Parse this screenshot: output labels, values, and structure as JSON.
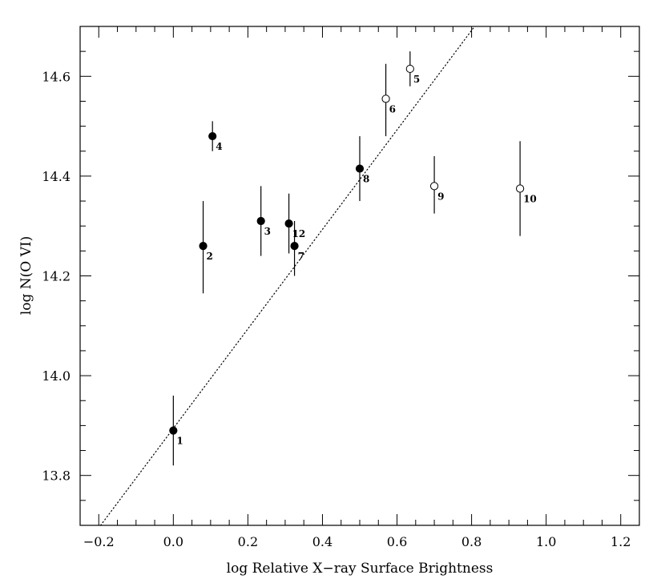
{
  "chart_data": {
    "type": "scatter",
    "title": "",
    "xlabel": "log Relative X−ray Surface Brightness",
    "ylabel": "log N(O VI)",
    "xlim": [
      -0.25,
      1.25
    ],
    "ylim": [
      13.7,
      14.7
    ],
    "x_ticks": [
      -0.2,
      0.0,
      0.2,
      0.4,
      0.6,
      0.8,
      1.0,
      1.2
    ],
    "x_tick_labels": [
      "−0.2",
      "0.0",
      "0.2",
      "0.4",
      "0.6",
      "0.8",
      "1.0",
      "1.2"
    ],
    "y_ticks": [
      13.8,
      14.0,
      14.2,
      14.4,
      14.6
    ],
    "y_tick_labels": [
      "13.8",
      "14.0",
      "14.2",
      "14.4",
      "14.6"
    ],
    "grid": false,
    "legend": "none",
    "series": [
      {
        "marker": "filled-circle",
        "points": [
          {
            "label": "1",
            "x": 0.0,
            "y": 13.89,
            "err_low": 13.82,
            "err_high": 13.96
          },
          {
            "label": "2",
            "x": 0.08,
            "y": 14.26,
            "err_low": 14.165,
            "err_high": 14.35
          },
          {
            "label": "3",
            "x": 0.235,
            "y": 14.31,
            "err_low": 14.24,
            "err_high": 14.38
          },
          {
            "label": "4",
            "x": 0.105,
            "y": 14.48,
            "err_low": 14.45,
            "err_high": 14.51
          },
          {
            "label": "12",
            "x": 0.31,
            "y": 14.305,
            "err_low": 14.245,
            "err_high": 14.365
          },
          {
            "label": "7",
            "x": 0.325,
            "y": 14.26,
            "err_low": 14.2,
            "err_high": 14.31
          },
          {
            "label": "8",
            "x": 0.5,
            "y": 14.415,
            "err_low": 14.35,
            "err_high": 14.48
          }
        ]
      },
      {
        "marker": "open-circle",
        "points": [
          {
            "label": "5",
            "x": 0.635,
            "y": 14.615,
            "err_low": 14.58,
            "err_high": 14.65
          },
          {
            "label": "6",
            "x": 0.57,
            "y": 14.555,
            "err_low": 14.48,
            "err_high": 14.625
          },
          {
            "label": "9",
            "x": 0.7,
            "y": 14.38,
            "err_low": 14.325,
            "err_high": 14.44
          },
          {
            "label": "10",
            "x": 0.93,
            "y": 14.375,
            "err_low": 14.28,
            "err_high": 14.47
          }
        ]
      }
    ],
    "fit_line": {
      "style": "dotted",
      "x": [
        -0.195,
        0.808
      ],
      "y": [
        13.7,
        14.7
      ]
    }
  }
}
